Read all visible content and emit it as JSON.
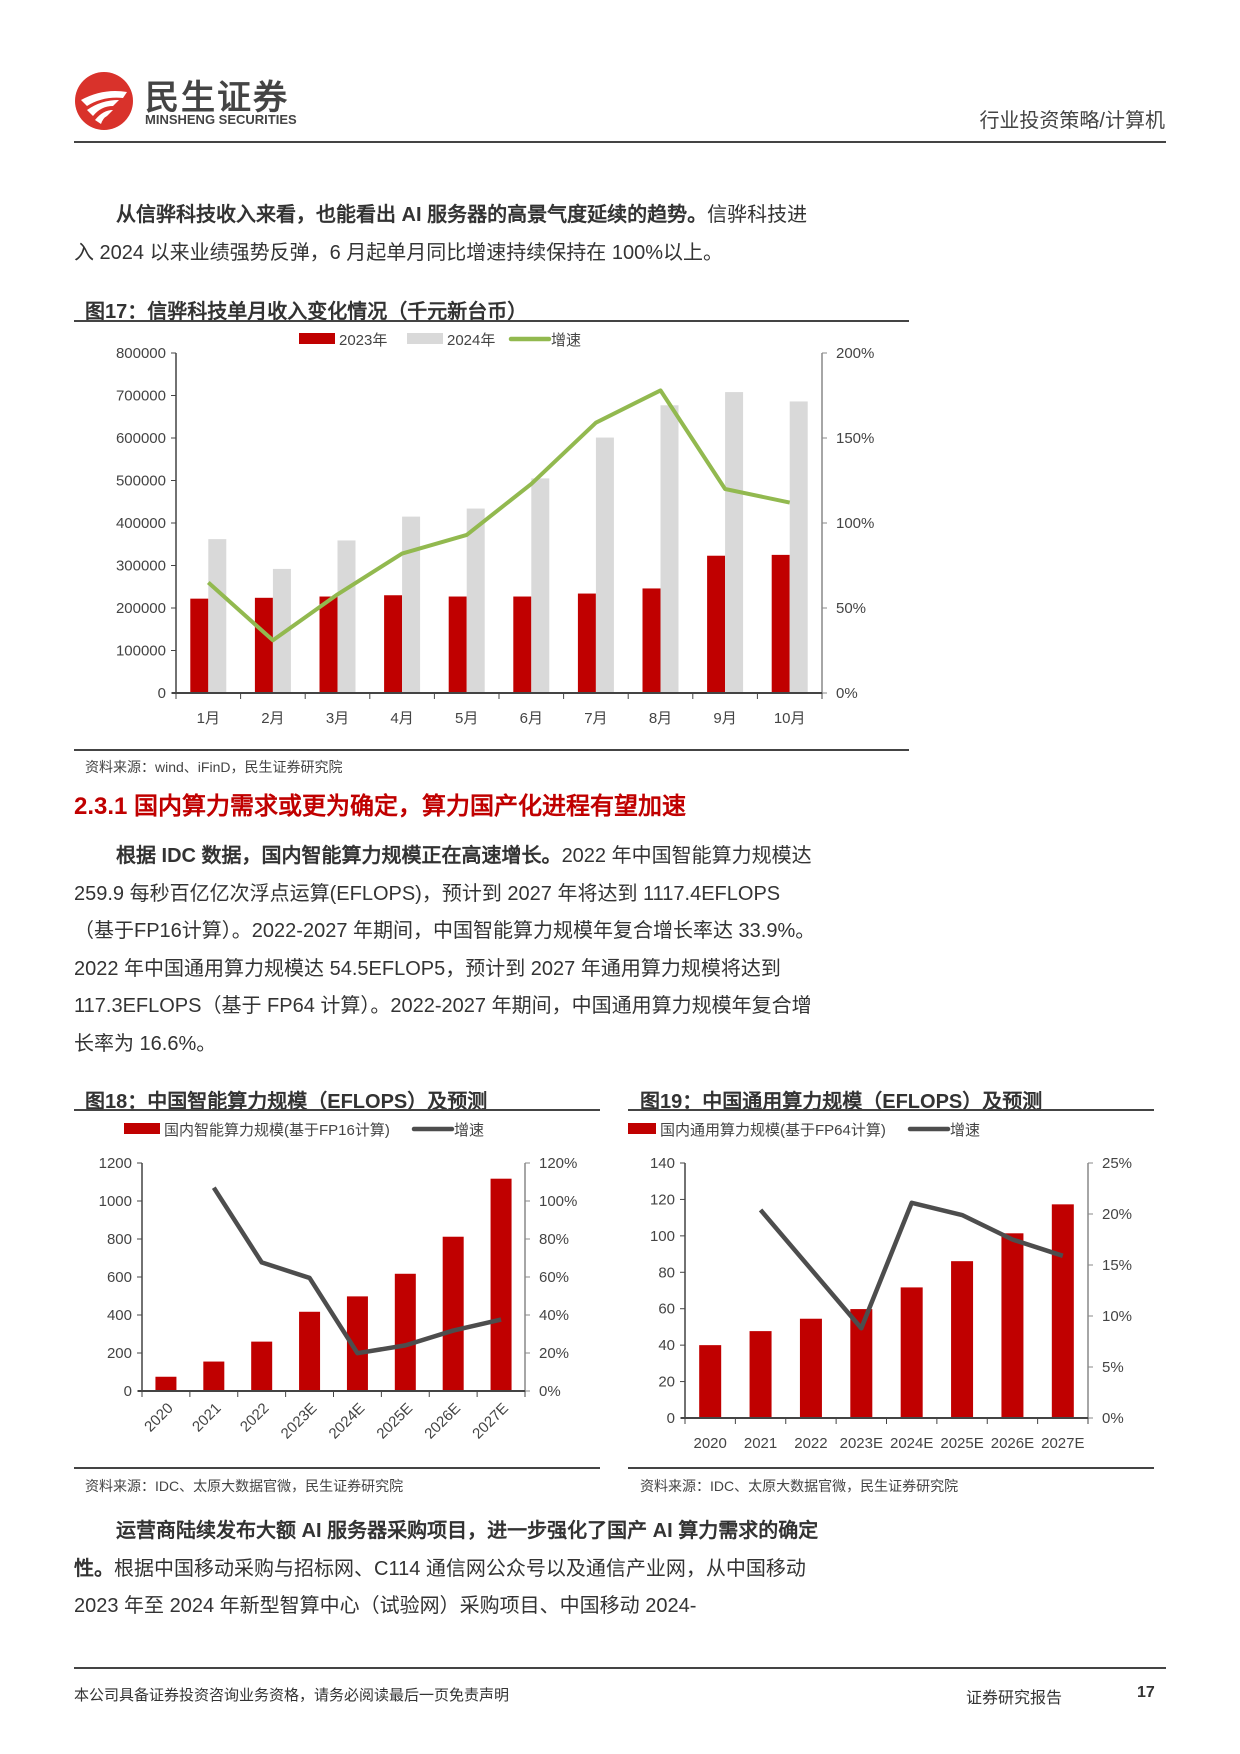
{
  "header": {
    "logo_cn": "民生证券",
    "logo_en": "MINSHENG SECURITIES",
    "section_label": "行业投资策略/计算机"
  },
  "para1": {
    "bold": "从信骅科技收入来看，也能看出 AI 服务器的高景气度延续的趋势。",
    "text": "信骅科技进入 2024 以来业绩强势反弹，6 月起单月同比增速持续保持在 100%以上。"
  },
  "fig17": {
    "title": "图17：信骅科技单月收入变化情况（千元新台币）",
    "source": "资料来源：wind、iFinD，民生证券研究院"
  },
  "section_heading": "2.3.1 国内算力需求或更为确定，算力国产化进程有望加速",
  "para2": {
    "bold": "根据 IDC 数据，国内智能算力规模正在高速增长。",
    "text": "2022 年中国智能算力规模达 259.9 每秒百亿亿次浮点运算(EFLOPS)，预计到 2027 年将达到 1117.4EFLOPS（基于FP16计算）。2022-2027 年期间，中国智能算力规模年复合增长率达 33.9%。2022 年中国通用算力规模达 54.5EFLOP5，预计到 2027 年通用算力规模将达到 117.3EFLOPS（基于 FP64 计算）。2022-2027 年期间，中国通用算力规模年复合增长率为 16.6%。"
  },
  "fig18": {
    "title": "图18：中国智能算力规模（EFLOPS）及预测",
    "source": "资料来源：IDC、太原大数据官微，民生证券研究院"
  },
  "fig19": {
    "title": "图19：中国通用算力规模（EFLOPS）及预测",
    "source": "资料来源：IDC、太原大数据官微，民生证券研究院"
  },
  "para3": {
    "bold": "运营商陆续发布大额 AI 服务器采购项目，进一步强化了国产 AI 算力需求的确定性。",
    "text": "根据中国移动采购与招标网、C114 通信网公众号以及通信产业网，从中国移动 2023 年至 2024 年新型智算中心（试验网）采购项目、中国移动 2024-"
  },
  "footer": {
    "disclaimer": "本公司具备证券投资咨询业务资格，请务必阅读最后一页免责声明",
    "report_type": "证券研究报告",
    "page_number": "17"
  },
  "chart_data": [
    {
      "type": "bar+line",
      "categories": [
        "1月",
        "2月",
        "3月",
        "4月",
        "5月",
        "6月",
        "7月",
        "8月",
        "9月",
        "10月"
      ],
      "series": [
        {
          "name": "2023年",
          "kind": "bar",
          "axis": "left",
          "color": "#c00000",
          "values": [
            222000,
            224000,
            227000,
            230000,
            227000,
            227000,
            234000,
            246000,
            323000,
            325000
          ]
        },
        {
          "name": "2024年",
          "kind": "bar",
          "axis": "left",
          "color": "#d9d9d9",
          "values": [
            362000,
            292000,
            359000,
            415000,
            434000,
            505000,
            601000,
            677000,
            708000,
            686000
          ]
        },
        {
          "name": "增速",
          "kind": "line",
          "axis": "right",
          "color": "#92b94f",
          "values": [
            65,
            31,
            58,
            82,
            93,
            123,
            159,
            178,
            120,
            112
          ]
        }
      ],
      "ylim": [
        0,
        800000
      ],
      "yticks": [
        "0",
        "100000",
        "200000",
        "300000",
        "400000",
        "500000",
        "600000",
        "700000",
        "800000"
      ],
      "y2lim": [
        0,
        200
      ],
      "y2ticks": [
        "0%",
        "50%",
        "100%",
        "150%",
        "200%"
      ],
      "legend": "top",
      "grid": false,
      "xlabel_rotate": false
    },
    {
      "type": "bar+line",
      "categories": [
        "2020",
        "2021",
        "2022",
        "2023E",
        "2024E",
        "2025E",
        "2026E",
        "2027E"
      ],
      "series": [
        {
          "name": "国内智能算力规模(基于FP16计算)",
          "kind": "bar",
          "axis": "left",
          "color": "#c00000",
          "values": [
            75,
            155,
            259.9,
            417,
            498,
            617,
            812,
            1117.4
          ]
        },
        {
          "name": "增速",
          "kind": "line",
          "axis": "right",
          "color": "#4d4d4d",
          "values": [
            null,
            107,
            67.7,
            59.5,
            19.9,
            24,
            31.8,
            37.6
          ]
        }
      ],
      "ylim": [
        0,
        1200
      ],
      "yticks": [
        "0",
        "200",
        "400",
        "600",
        "800",
        "1000",
        "1200"
      ],
      "y2lim": [
        0,
        120
      ],
      "y2ticks": [
        "0%",
        "20%",
        "40%",
        "60%",
        "80%",
        "100%",
        "120%"
      ],
      "legend": "top",
      "grid": false,
      "xlabel_rotate": true
    },
    {
      "type": "bar+line",
      "categories": [
        "2020",
        "2021",
        "2022",
        "2023E",
        "2024E",
        "2025E",
        "2026E",
        "2027E"
      ],
      "series": [
        {
          "name": "国内通用算力规模(基于FP64计算)",
          "kind": "bar",
          "axis": "left",
          "color": "#c00000",
          "values": [
            40,
            47.7,
            54.5,
            59.8,
            71.7,
            86.1,
            101.4,
            117.3
          ]
        },
        {
          "name": "增速",
          "kind": "line",
          "axis": "right",
          "color": "#4d4d4d",
          "values": [
            null,
            20.4,
            14.6,
            8.8,
            21.1,
            19.9,
            17.5,
            15.9
          ]
        }
      ],
      "ylim": [
        0,
        140
      ],
      "yticks": [
        "0",
        "20",
        "40",
        "60",
        "80",
        "100",
        "120",
        "140"
      ],
      "y2lim": [
        0,
        25
      ],
      "y2ticks": [
        "0%",
        "5%",
        "10%",
        "15%",
        "20%",
        "25%"
      ],
      "legend": "top",
      "grid": false,
      "xlabel_rotate": false
    }
  ]
}
